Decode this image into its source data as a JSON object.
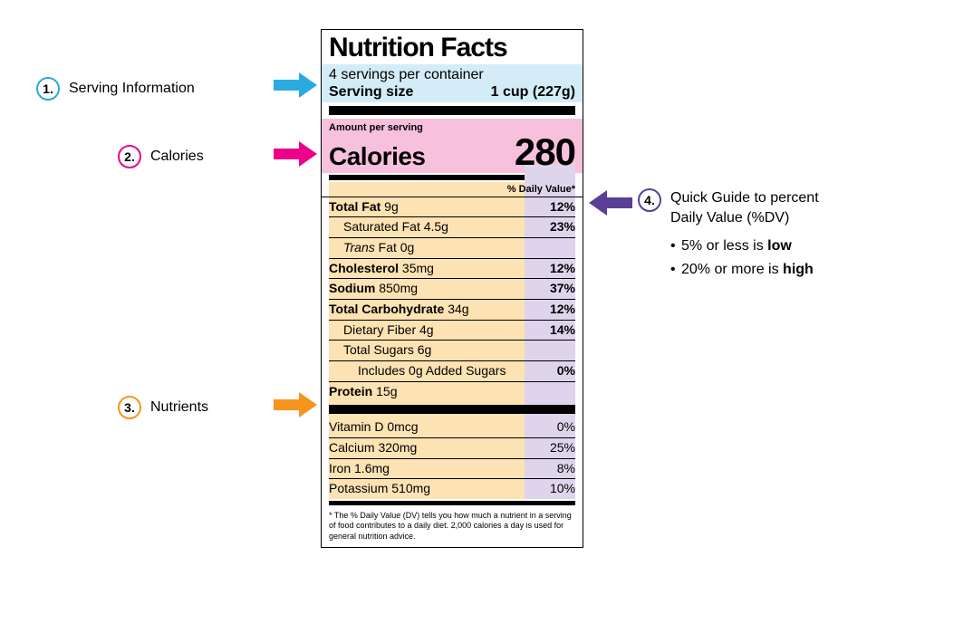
{
  "colors": {
    "callout1": "#29abe2",
    "callout2": "#ec008c",
    "callout3": "#f7941d",
    "callout4": "#5a3f99",
    "serving_bg": "#d4ecf7",
    "calories_bg": "#f7c0dd",
    "nutrients_bg": "#fde2b3",
    "dv_bg": "#ded5ec"
  },
  "callouts": {
    "c1": {
      "num": "1.",
      "label": "Serving Information"
    },
    "c2": {
      "num": "2.",
      "label": "Calories"
    },
    "c3": {
      "num": "3.",
      "label": "Nutrients"
    },
    "c4": {
      "num": "4.",
      "title_line1": "Quick Guide to percent",
      "title_line2": "Daily Value (%DV)",
      "bullet1_pre": "5% or less is ",
      "bullet1_b": "low",
      "bullet2_pre": "20% or more is ",
      "bullet2_b": "high"
    }
  },
  "label": {
    "title": "Nutrition Facts",
    "servings_per": "4 servings per container",
    "serving_size_label": "Serving size",
    "serving_size_value": "1 cup (227g)",
    "amount_per": "Amount per serving",
    "calories_label": "Calories",
    "calories_value": "280",
    "dv_header": "% Daily Value*",
    "nutrients": [
      {
        "name_b": "Total Fat",
        "amount": " 9g",
        "dv": "12%",
        "bold_dv": true
      },
      {
        "indent": 1,
        "name": "Saturated Fat 4.5g",
        "dv": "23%",
        "bold_dv": true
      },
      {
        "indent": 1,
        "name_i": "Trans",
        "name_after": " Fat 0g",
        "dv": ""
      },
      {
        "name_b": "Cholesterol",
        "amount": " 35mg",
        "dv": "12%",
        "bold_dv": true
      },
      {
        "name_b": "Sodium",
        "amount": " 850mg",
        "dv": "37%",
        "bold_dv": true
      },
      {
        "name_b": "Total Carbohydrate",
        "amount": " 34g",
        "dv": "12%",
        "bold_dv": true
      },
      {
        "indent": 1,
        "name": "Dietary Fiber 4g",
        "dv": "14%",
        "bold_dv": true
      },
      {
        "indent": 1,
        "name": "Total Sugars 6g",
        "dv": ""
      },
      {
        "indent": 2,
        "name": "Includes 0g Added Sugars",
        "dv": "0%",
        "bold_dv": true
      },
      {
        "name_b": "Protein",
        "amount": " 15g",
        "dv": "",
        "noborder": true
      }
    ],
    "micronutrients": [
      {
        "name": "Vitamin D 0mcg",
        "dv": "0%"
      },
      {
        "name": "Calcium 320mg",
        "dv": "25%"
      },
      {
        "name": "Iron 1.6mg",
        "dv": "8%"
      },
      {
        "name": "Potassium 510mg",
        "dv": "10%",
        "noborder": true
      }
    ],
    "footnote": "* The % Daily Value (DV) tells you how much a nutrient in a serving of food contributes to a daily diet. 2,000 calories a day is used for general nutrition advice."
  }
}
